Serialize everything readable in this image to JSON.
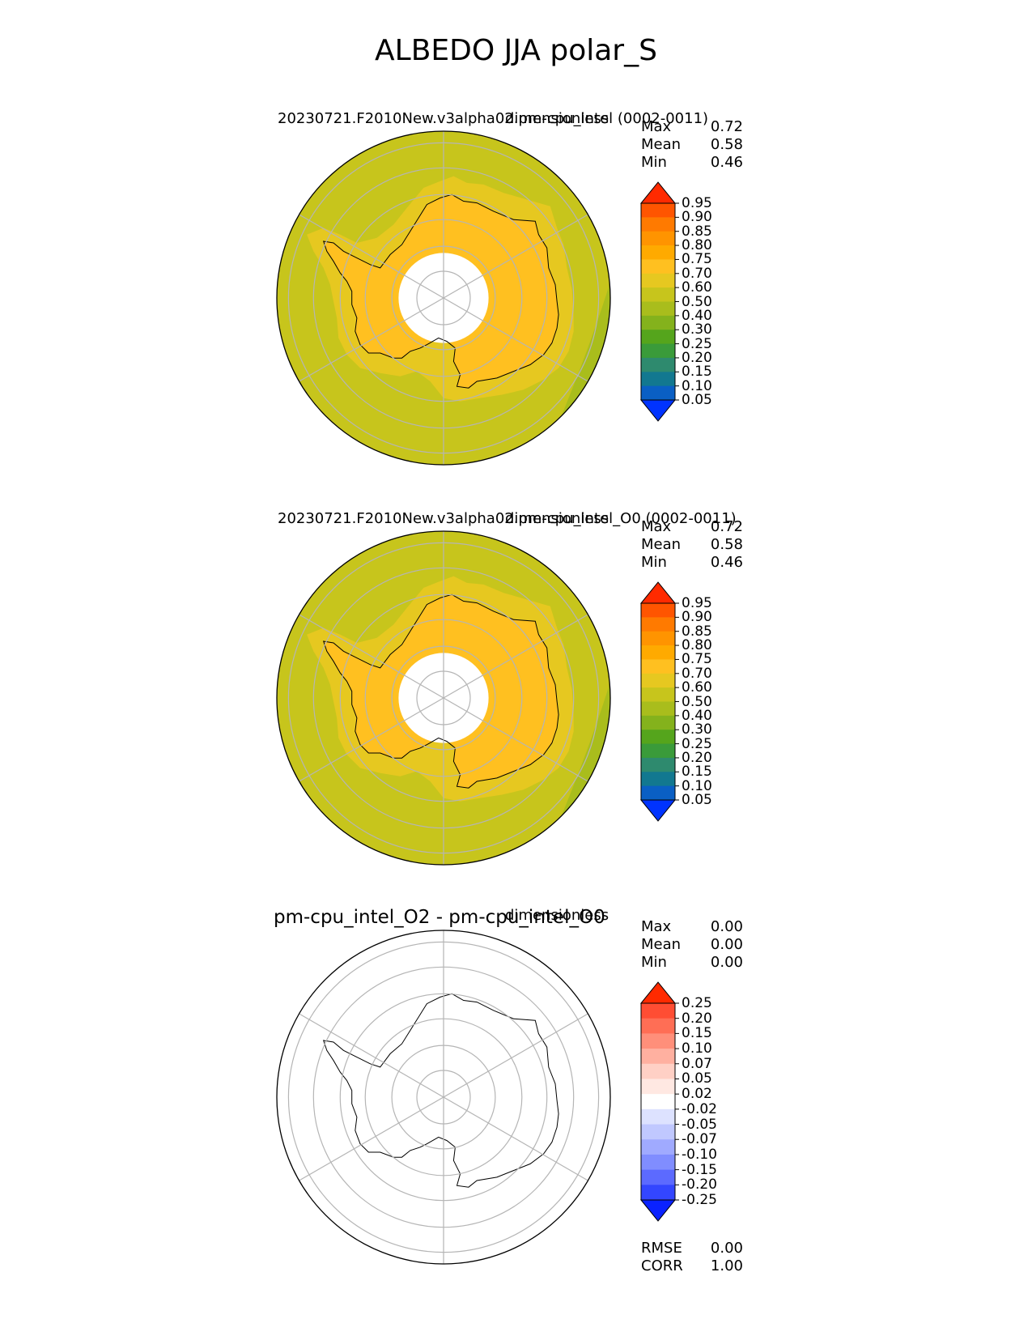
{
  "figure": {
    "title": "ALBEDO JJA polar_S"
  },
  "chart_data": [
    {
      "type": "heatmap",
      "projection": "south-polar-stereographic",
      "title": "20230721.F2010New.v3alpha02.pm-cpu_intel (0002-0011)",
      "units": "dimensionless",
      "stats": {
        "max_label": "Max",
        "max": "0.72",
        "mean_label": "Mean",
        "mean": "0.58",
        "min_label": "Min",
        "min": "0.46"
      },
      "colorbar": {
        "levels": [
          "0.95",
          "0.90",
          "0.85",
          "0.80",
          "0.75",
          "0.70",
          "0.60",
          "0.50",
          "0.40",
          "0.30",
          "0.25",
          "0.20",
          "0.15",
          "0.10",
          "0.05"
        ],
        "colors": [
          "#ff2a00",
          "#ff5500",
          "#ff7a00",
          "#ff9400",
          "#ffaa00",
          "#ffc020",
          "#e6c820",
          "#c7c51c",
          "#a9bd1c",
          "#84b21c",
          "#55a51c",
          "#3a9b3a",
          "#2e8a6e",
          "#127890",
          "#0a5fc4",
          "#0033ff"
        ],
        "extend": "both"
      },
      "field": {
        "ocean": "#c7c51c",
        "coastal_ocean": "#a9bd1c",
        "land_interior": "#ffc020",
        "land_coast": "#e6c820",
        "missing_pole": "#ffffff"
      }
    },
    {
      "type": "heatmap",
      "projection": "south-polar-stereographic",
      "title": "20230721.F2010New.v3alpha02.pm-cpu_intel_O0 (0002-0011)",
      "units": "dimensionless",
      "stats": {
        "max_label": "Max",
        "max": "0.72",
        "mean_label": "Mean",
        "mean": "0.58",
        "min_label": "Min",
        "min": "0.46"
      },
      "colorbar": {
        "levels": [
          "0.95",
          "0.90",
          "0.85",
          "0.80",
          "0.75",
          "0.70",
          "0.60",
          "0.50",
          "0.40",
          "0.30",
          "0.25",
          "0.20",
          "0.15",
          "0.10",
          "0.05"
        ],
        "colors": [
          "#ff2a00",
          "#ff5500",
          "#ff7a00",
          "#ff9400",
          "#ffaa00",
          "#ffc020",
          "#e6c820",
          "#c7c51c",
          "#a9bd1c",
          "#84b21c",
          "#55a51c",
          "#3a9b3a",
          "#2e8a6e",
          "#127890",
          "#0a5fc4",
          "#0033ff"
        ],
        "extend": "both"
      },
      "field": {
        "ocean": "#c7c51c",
        "coastal_ocean": "#a9bd1c",
        "land_interior": "#ffc020",
        "land_coast": "#e6c820",
        "missing_pole": "#ffffff"
      }
    },
    {
      "type": "heatmap",
      "projection": "south-polar-stereographic",
      "title": "pm-cpu_intel_O2 - pm-cpu_intel_O0",
      "units": "dimensionless",
      "stats": {
        "max_label": "Max",
        "max": "0.00",
        "mean_label": "Mean",
        "mean": "0.00",
        "min_label": "Min",
        "min": "0.00"
      },
      "colorbar": {
        "levels": [
          "0.25",
          "0.20",
          "0.15",
          "0.10",
          "0.07",
          "0.05",
          "0.02",
          "-0.02",
          "-0.05",
          "-0.07",
          "-0.10",
          "-0.15",
          "-0.20",
          "-0.25"
        ],
        "colors": [
          "#ff2a00",
          "#ff4d33",
          "#ff6e55",
          "#ff8f7a",
          "#ffb0a0",
          "#ffd0c5",
          "#ffe8e2",
          "#ffffff",
          "#dde2ff",
          "#c0c8ff",
          "#a0aaff",
          "#808dff",
          "#5c6aff",
          "#3346ff",
          "#0a22ff"
        ],
        "extend": "both"
      },
      "metrics": {
        "rmse_label": "RMSE",
        "rmse": "0.00",
        "corr_label": "CORR",
        "corr": "1.00"
      },
      "field": {
        "difference": "#ffffff"
      }
    }
  ]
}
